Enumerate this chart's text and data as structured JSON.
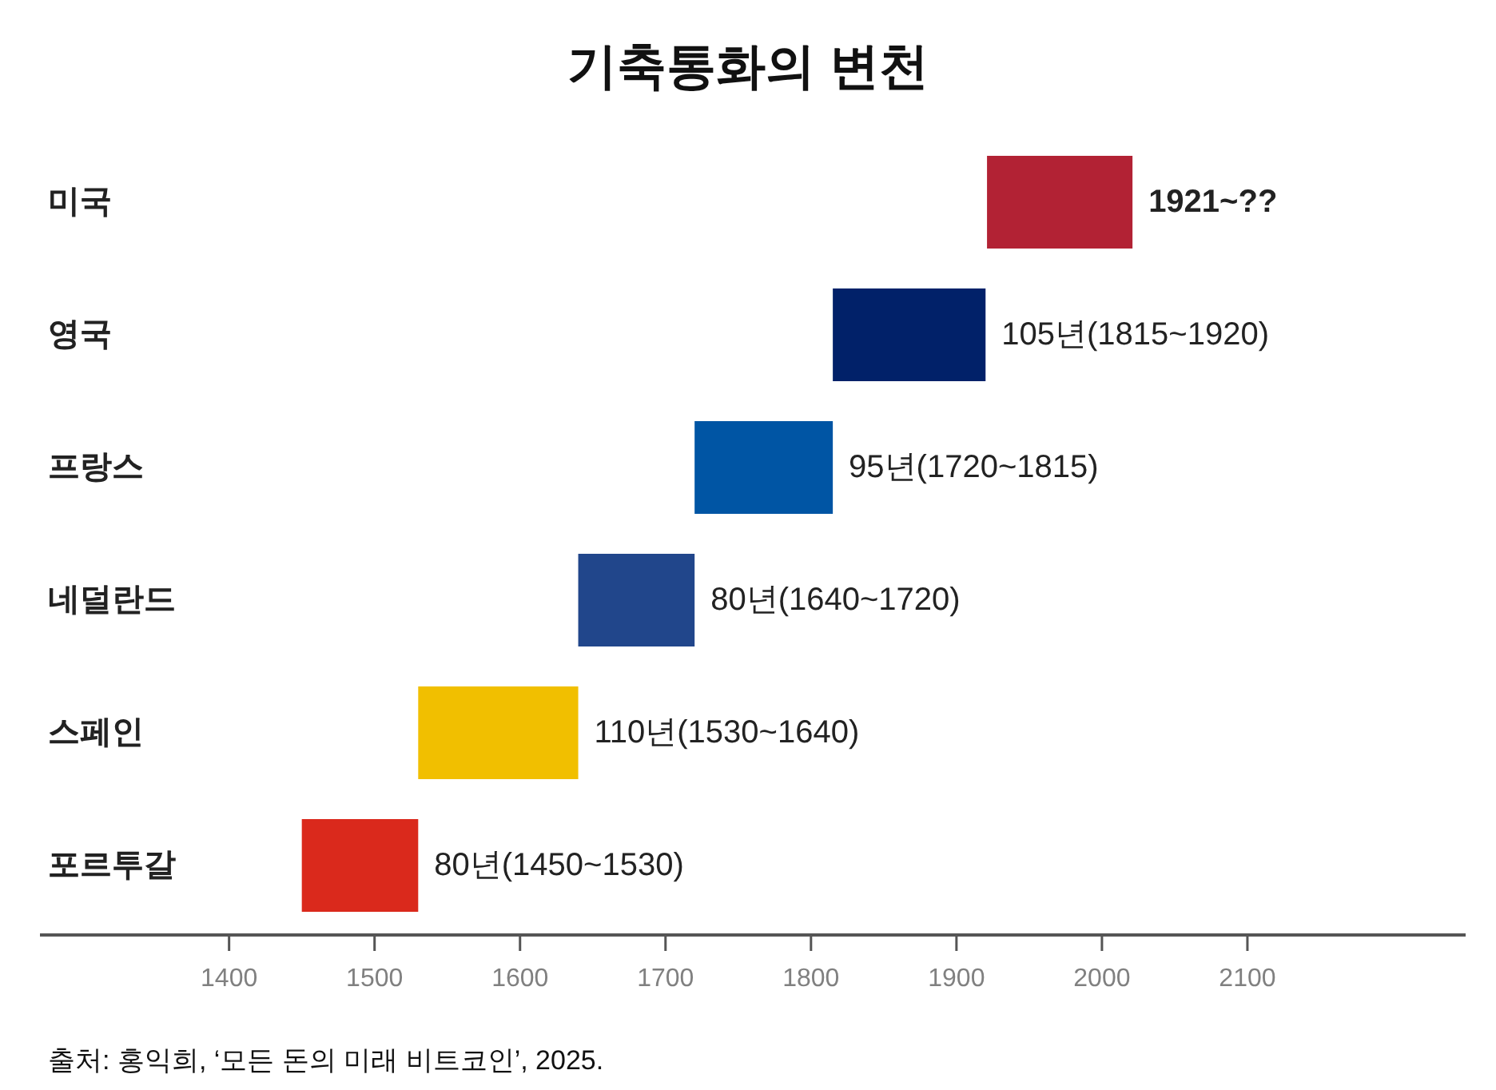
{
  "chart_data": {
    "type": "bar",
    "orientation": "horizontal",
    "title": "기축통화의 변천",
    "categories": [
      "미국",
      "영국",
      "프랑스",
      "네덜란드",
      "스페인",
      "포르투갈"
    ],
    "base": [
      1921,
      1815,
      1720,
      1640,
      1530,
      1450
    ],
    "values": [
      100,
      105,
      95,
      80,
      110,
      80
    ],
    "colors": [
      "#b22234",
      "#012169",
      "#0055a4",
      "#21468b",
      "#f1bf00",
      "#da291c"
    ],
    "value_labels": [
      null,
      "105년(1815~1920)",
      "95년(1720~1815)",
      "80년(1640~1720)",
      "110년(1530~1640)",
      "80년(1450~1530)"
    ],
    "xlim": [
      1270,
      2250
    ],
    "xticks": [
      1400,
      1500,
      1600,
      1700,
      1800,
      1900,
      2000,
      2100
    ],
    "annotations": [
      "1921~??",
      "출처: 홍익희, ‘모든 돈의 미래 비트코인’, 2025."
    ]
  }
}
